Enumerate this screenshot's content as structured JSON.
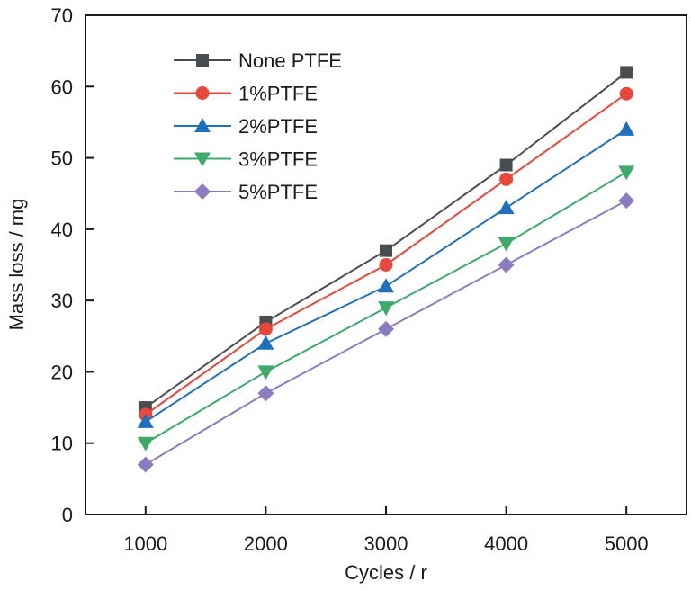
{
  "chart_data": {
    "type": "line",
    "title": "",
    "xlabel": "Cycles / r",
    "ylabel": "Mass loss / mg",
    "x": [
      1000,
      2000,
      3000,
      4000,
      5000
    ],
    "xticks": [
      1000,
      2000,
      3000,
      4000,
      5000
    ],
    "xtick_labels": [
      "1000",
      "2000",
      "3000",
      "4000",
      "5000"
    ],
    "yticks": [
      0,
      10,
      20,
      30,
      40,
      50,
      60,
      70
    ],
    "ytick_labels": [
      "0",
      "10",
      "20",
      "30",
      "40",
      "50",
      "60",
      "70"
    ],
    "xlim": [
      500,
      5500
    ],
    "ylim": [
      0,
      70
    ],
    "grid": false,
    "legend_position": "top-left",
    "series": [
      {
        "name": "None PTFE",
        "marker": "square",
        "color": "#4a4d50",
        "values": [
          15,
          27,
          37,
          49,
          62
        ]
      },
      {
        "name": "1%PTFE",
        "marker": "circle",
        "color": "#e8483c",
        "values": [
          14,
          26,
          35,
          47,
          59
        ]
      },
      {
        "name": "2%PTFE",
        "marker": "triangle-up",
        "color": "#1f6fbf",
        "values": [
          13,
          24,
          32,
          43,
          54
        ]
      },
      {
        "name": "3%PTFE",
        "marker": "triangle-down",
        "color": "#3daa6a",
        "values": [
          10,
          20,
          29,
          38,
          48
        ]
      },
      {
        "name": "5%PTFE",
        "marker": "diamond",
        "color": "#8c7bbf",
        "values": [
          7,
          17,
          26,
          35,
          44
        ]
      }
    ]
  }
}
